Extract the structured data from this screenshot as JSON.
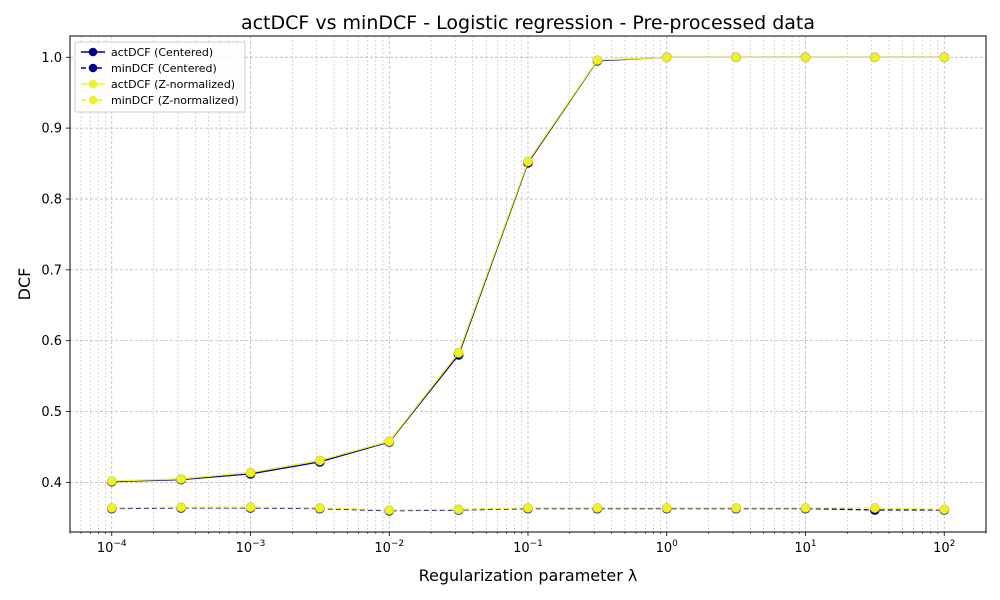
{
  "chart_data": {
    "type": "line",
    "title": "actDCF vs minDCF - Logistic regression - Pre-processed data",
    "xlabel": "Regularization parameter λ",
    "ylabel": "DCF",
    "xscale": "log",
    "xlim": [
      5e-05,
      200
    ],
    "ylim": [
      0.33,
      1.03
    ],
    "x_ticks": [
      {
        "value": 0.0001,
        "base": "10",
        "exp": "−4"
      },
      {
        "value": 0.001,
        "base": "10",
        "exp": "−3"
      },
      {
        "value": 0.01,
        "base": "10",
        "exp": "−2"
      },
      {
        "value": 0.1,
        "base": "10",
        "exp": "−1"
      },
      {
        "value": 1,
        "base": "10",
        "exp": "0"
      },
      {
        "value": 10,
        "base": "10",
        "exp": "1"
      },
      {
        "value": 100,
        "base": "10",
        "exp": "2"
      }
    ],
    "y_ticks": [
      "0.4",
      "0.5",
      "0.6",
      "0.7",
      "0.8",
      "0.9",
      "1.0"
    ],
    "grid": true,
    "legend_position": "top-left",
    "x": [
      0.0001,
      0.000316,
      0.001,
      0.00316,
      0.01,
      0.0316,
      0.1,
      0.316,
      1,
      3.16,
      10,
      31.6,
      100
    ],
    "series": [
      {
        "name": "actDCF (Centered)",
        "color": "#00008b",
        "linestyle": "solid",
        "values": [
          0.401,
          0.404,
          0.412,
          0.429,
          0.457,
          0.58,
          0.851,
          0.995,
          1.0,
          1.0,
          1.0,
          1.0,
          1.0
        ]
      },
      {
        "name": "minDCF (Centered)",
        "color": "#00008b",
        "linestyle": "dashed",
        "values": [
          0.363,
          0.364,
          0.364,
          0.363,
          0.36,
          0.361,
          0.363,
          0.363,
          0.363,
          0.363,
          0.363,
          0.361,
          0.361
        ]
      },
      {
        "name": "actDCF (Z-normalized)",
        "color": "#f0f02a",
        "linestyle": "solid",
        "values": [
          0.402,
          0.405,
          0.414,
          0.431,
          0.458,
          0.583,
          0.853,
          0.996,
          1.0,
          1.0,
          1.0,
          1.0,
          1.0
        ]
      },
      {
        "name": "minDCF (Z-normalized)",
        "color": "#f0f02a",
        "linestyle": "dashed",
        "values": [
          0.364,
          0.365,
          0.365,
          0.364,
          0.361,
          0.362,
          0.364,
          0.364,
          0.364,
          0.364,
          0.364,
          0.364,
          0.362
        ]
      }
    ]
  }
}
